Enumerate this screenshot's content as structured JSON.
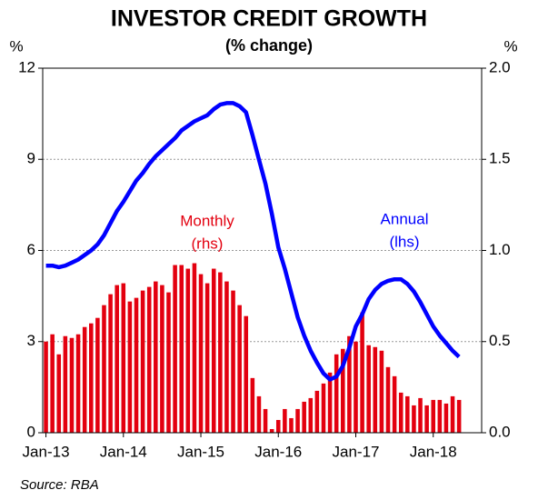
{
  "chart_data": {
    "type": "bar",
    "title": "INVESTOR CREDIT GROWTH",
    "subtitle": "(% change)",
    "ylabel": "%",
    "y2label": "%",
    "source": "Source: RBA",
    "categories": [
      "Jan-13",
      null,
      null,
      null,
      null,
      null,
      null,
      null,
      null,
      null,
      null,
      null,
      "Jan-14",
      null,
      null,
      null,
      null,
      null,
      null,
      null,
      null,
      null,
      null,
      null,
      "Jan-15",
      null,
      null,
      null,
      null,
      null,
      null,
      null,
      null,
      null,
      null,
      null,
      "Jan-16",
      null,
      null,
      null,
      null,
      null,
      null,
      null,
      null,
      null,
      null,
      null,
      "Jan-17",
      null,
      null,
      null,
      null,
      null,
      null,
      null,
      null,
      null,
      null,
      null,
      "Jan-18",
      null,
      null,
      null,
      null,
      null,
      null,
      null
    ],
    "series": [
      {
        "name": "Monthly",
        "axis_label": "(rhs)",
        "type": "bar",
        "axis": "y2",
        "color": "#e3000f",
        "values": [
          0.5,
          0.54,
          0.43,
          0.53,
          0.52,
          0.54,
          0.58,
          0.6,
          0.63,
          0.7,
          0.76,
          0.81,
          0.82,
          0.72,
          0.74,
          0.78,
          0.8,
          0.83,
          0.81,
          0.77,
          0.92,
          0.92,
          0.9,
          0.93,
          0.87,
          0.82,
          0.9,
          0.88,
          0.83,
          0.78,
          0.7,
          0.64,
          0.3,
          0.2,
          0.13,
          0.02,
          0.07,
          0.13,
          0.08,
          0.13,
          0.17,
          0.19,
          0.23,
          0.27,
          0.33,
          0.43,
          0.46,
          0.53,
          0.5,
          0.66,
          0.48,
          0.47,
          0.45,
          0.36,
          0.31,
          0.22,
          0.2,
          0.15,
          0.19,
          0.15,
          0.18,
          0.18,
          0.16,
          0.2,
          0.18,
          null,
          null,
          null
        ]
      },
      {
        "name": "Annual",
        "axis_label": "(lhs)",
        "type": "line",
        "color": "#0000ff",
        "values": [
          5.5,
          5.5,
          5.45,
          5.5,
          5.6,
          5.7,
          5.85,
          6.0,
          6.2,
          6.5,
          6.9,
          7.3,
          7.6,
          7.95,
          8.3,
          8.55,
          8.85,
          9.1,
          9.3,
          9.5,
          9.7,
          9.95,
          10.1,
          10.25,
          10.35,
          10.45,
          10.65,
          10.8,
          10.85,
          10.85,
          10.75,
          10.55,
          9.8,
          9.0,
          8.2,
          7.2,
          6.1,
          5.4,
          4.6,
          3.8,
          3.2,
          2.7,
          2.3,
          1.95,
          1.75,
          1.85,
          2.2,
          2.8,
          3.5,
          3.9,
          4.4,
          4.7,
          4.9,
          5.0,
          5.05,
          5.05,
          4.9,
          4.65,
          4.3,
          3.9,
          3.5,
          3.2,
          2.95,
          2.7,
          2.5,
          null,
          null,
          null
        ]
      }
    ],
    "ylim": [
      0,
      12
    ],
    "yticks": [
      0,
      3,
      6,
      9,
      12
    ],
    "y2lim": [
      0,
      2
    ],
    "y2ticks": [
      {
        "value": 0,
        "label": "0.0"
      },
      0.5,
      {
        "value": 1,
        "label": "1.0"
      },
      1.5,
      {
        "value": 2,
        "label": "2.0"
      }
    ],
    "grid": true
  }
}
